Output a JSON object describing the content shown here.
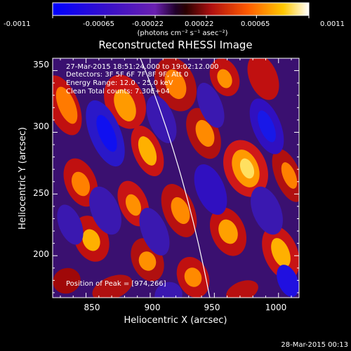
{
  "colorbar": {
    "ticks": [
      "-0.0011",
      "-0.00065",
      "-0.00022",
      "0.00022",
      "0.00065",
      "0.0011"
    ],
    "units": "(photons cm⁻² s⁻¹ asec⁻²)",
    "range": [
      -0.0011,
      0.0011
    ]
  },
  "plot": {
    "title": "Reconstructed RHESSI Image",
    "xlabel": "Heliocentric X (arcsec)",
    "ylabel": "Heliocentric Y (arcsec)",
    "x_ticks": [
      "850",
      "900",
      "950",
      "1000"
    ],
    "y_ticks": [
      "200",
      "250",
      "300",
      "350"
    ],
    "xlim": [
      824,
      1016
    ],
    "ylim": [
      166,
      360
    ]
  },
  "info": {
    "time_range": "27-Mar-2015 18:51:24.000 to 19:02:12.000",
    "detectors": "Detectors: 3F 5F 6F 7F 8F 9F, Att 0",
    "energy": "Energy Range: 12.0 - 25.0 keV",
    "algorithm": "Clean    Total counts: 7.30E+04",
    "peak": "Position of Peak = [974,266]"
  },
  "footer": {
    "timestamp": "28-Mar-2015 00:13"
  },
  "colors": {
    "background": "#000000",
    "text": "#ffffff",
    "limb_line": "#ffffff"
  }
}
